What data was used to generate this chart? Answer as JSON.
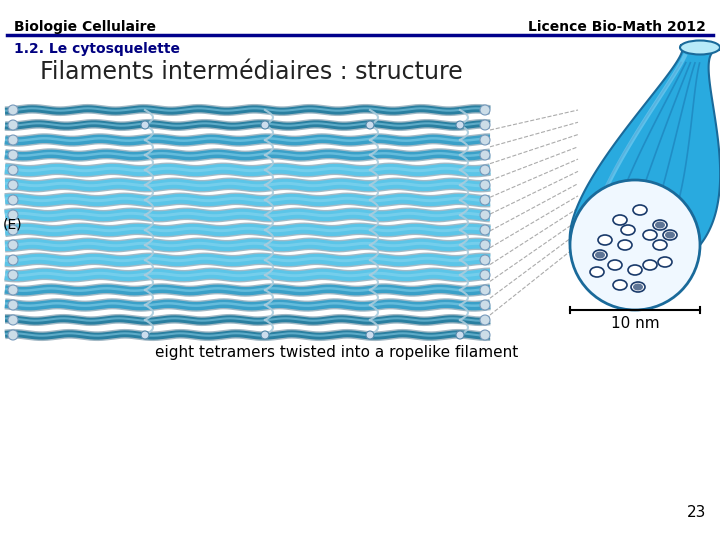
{
  "header_left": "Biologie Cellulaire",
  "header_right": "Licence Bio-Math 2012",
  "header_line_color": "#00008B",
  "header_text_color": "#000000",
  "subtitle": "1.2. Le cytosquelette",
  "subtitle_color": "#000080",
  "title": "Filaments intermédiaires : structure",
  "title_color": "#222222",
  "page_number": "23",
  "bg_color": "#ffffff",
  "header_fontsize": 10,
  "subtitle_fontsize": 10,
  "title_fontsize": 17,
  "page_number_fontsize": 11,
  "strand_color_dark": "#2a7fa0",
  "strand_color_mid": "#3aa0c8",
  "strand_color_light": "#5bc5e8",
  "cylinder_blue": "#29aadf",
  "cylinder_dark": "#1a6a9a",
  "caption_text": "eight tetramers twisted into a ropelike filament",
  "label_e": "(E)",
  "label_10nm": "10 nm"
}
